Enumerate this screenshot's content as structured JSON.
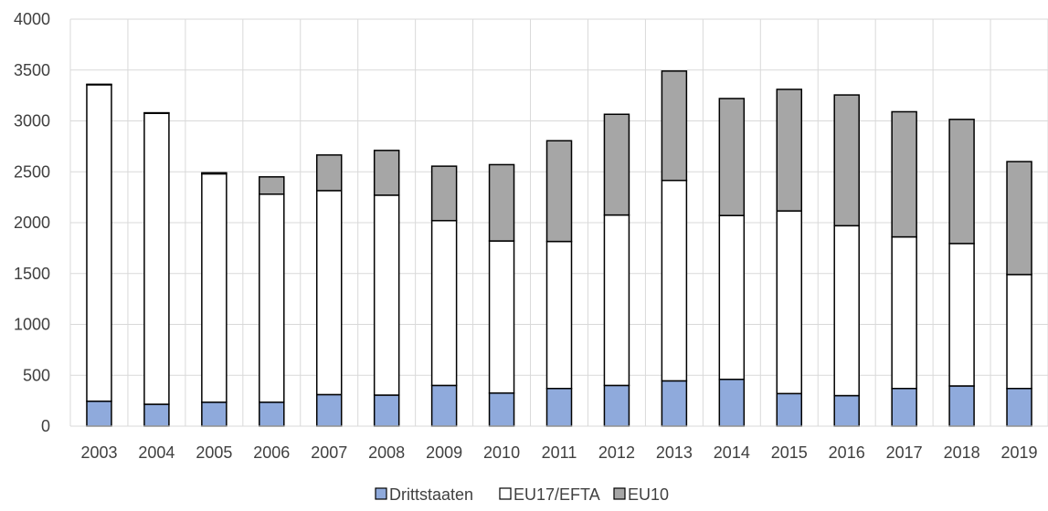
{
  "chart_data": {
    "type": "bar",
    "stacked": true,
    "title": "",
    "xlabel": "",
    "ylabel": "",
    "categories": [
      "2003",
      "2004",
      "2005",
      "2006",
      "2007",
      "2008",
      "2009",
      "2010",
      "2011",
      "2012",
      "2013",
      "2014",
      "2015",
      "2016",
      "2017",
      "2018",
      "2019"
    ],
    "series": [
      {
        "name": "Drittstaaten",
        "color": "#8FAADC",
        "values": [
          245,
          215,
          235,
          235,
          310,
          305,
          400,
          325,
          370,
          400,
          445,
          460,
          320,
          300,
          370,
          395,
          370
        ]
      },
      {
        "name": "EU17/EFTA",
        "color": "#FFFFFF",
        "values": [
          3110,
          2860,
          2245,
          2045,
          2005,
          1965,
          1620,
          1495,
          1445,
          1675,
          1970,
          1610,
          1795,
          1670,
          1490,
          1400,
          1120
        ]
      },
      {
        "name": "EU10",
        "color": "#A6A6A6",
        "values": [
          5,
          5,
          10,
          170,
          350,
          440,
          535,
          750,
          990,
          990,
          1075,
          1150,
          1195,
          1285,
          1230,
          1220,
          1110
        ]
      }
    ],
    "ylim": [
      0,
      4000
    ],
    "yticks": [
      0,
      500,
      1000,
      1500,
      2000,
      2500,
      3000,
      3500,
      4000
    ],
    "grid": true,
    "legend_position": "bottom"
  }
}
